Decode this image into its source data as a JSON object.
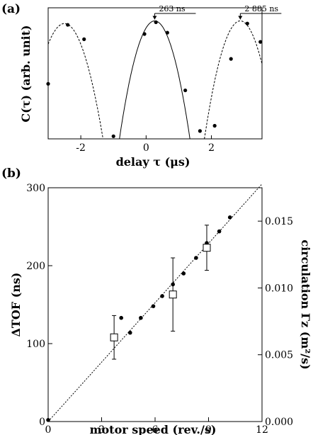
{
  "chart_data": [
    {
      "panel_label": "(a)",
      "type": "scatter",
      "xlabel": "delay τ (μs)",
      "ylabel": "C(τ) (arb. unit)",
      "xlim": [
        -3.0,
        3.55
      ],
      "ylim": [
        0,
        1
      ],
      "x_ticks": [
        "-2",
        "0",
        "2"
      ],
      "y_ticks": [],
      "annotations": [
        "263 ns",
        "2 885 ns"
      ],
      "series": [
        {
          "points": [
            {
              "x": -3.0,
              "y": 0.42
            },
            {
              "x": -2.4,
              "y": 0.87
            },
            {
              "x": -1.9,
              "y": 0.76
            },
            {
              "x": -1.0,
              "y": 0.02
            },
            {
              "x": -0.05,
              "y": 0.8
            },
            {
              "x": 0.3,
              "y": 0.89
            },
            {
              "x": 0.65,
              "y": 0.81
            },
            {
              "x": 1.2,
              "y": 0.37
            },
            {
              "x": 1.65,
              "y": 0.06
            },
            {
              "x": 2.1,
              "y": 0.1
            },
            {
              "x": 2.6,
              "y": 0.61
            },
            {
              "x": 3.1,
              "y": 0.88
            },
            {
              "x": 3.5,
              "y": 0.74
            }
          ]
        }
      ],
      "fits": [
        {
          "center": -2.5,
          "peak": 0.88,
          "halfwidth": 1.18,
          "style": "dashed"
        },
        {
          "center": 0.263,
          "peak": 0.9,
          "halfwidth": 1.08,
          "style": "solid"
        },
        {
          "center": 2.885,
          "peak": 0.9,
          "halfwidth": 1.1,
          "style": "dashed"
        }
      ]
    },
    {
      "panel_label": "(b)",
      "type": "scatter",
      "xlabel": "motor speed (rev./s)",
      "ylabel": "ΔTOF (ns)",
      "ylabel_right": "circulation Γz (m²/s)",
      "xlim": [
        0,
        12
      ],
      "ylim": [
        0,
        300
      ],
      "ylim_right": [
        0,
        0.0175
      ],
      "x_ticks": [
        "0",
        "3",
        "6",
        "9",
        "12"
      ],
      "y_ticks": [
        "0",
        "100",
        "200",
        "300"
      ],
      "y_ticks_right": [
        "0.000",
        "0.005",
        "0.010",
        "0.015"
      ],
      "series": [
        {
          "marker": "filled-circle",
          "points": [
            {
              "x": 0.0,
              "y": 2
            },
            {
              "x": 4.1,
              "y": 133
            },
            {
              "x": 4.6,
              "y": 114
            },
            {
              "x": 5.2,
              "y": 133
            },
            {
              "x": 5.9,
              "y": 148
            },
            {
              "x": 6.4,
              "y": 161
            },
            {
              "x": 7.0,
              "y": 176
            },
            {
              "x": 7.6,
              "y": 190
            },
            {
              "x": 8.3,
              "y": 210
            },
            {
              "x": 8.9,
              "y": 229
            },
            {
              "x": 9.6,
              "y": 244
            },
            {
              "x": 10.2,
              "y": 262
            }
          ]
        },
        {
          "marker": "open-square",
          "points": [
            {
              "x": 3.7,
              "y": 108,
              "err": 28
            },
            {
              "x": 7.0,
              "y": 163,
              "err": 47
            },
            {
              "x": 8.9,
              "y": 223,
              "err": 29
            }
          ]
        }
      ],
      "fit_line": {
        "style": "dotted",
        "slope": 25.4,
        "intercept": 0
      }
    }
  ]
}
